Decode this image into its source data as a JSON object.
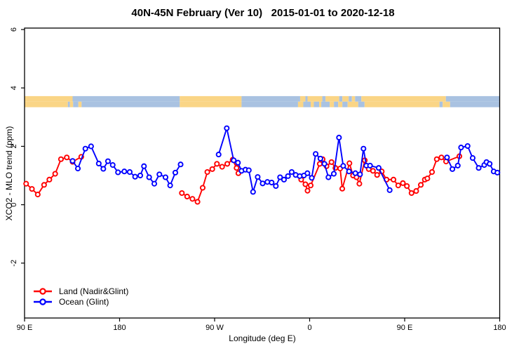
{
  "chart_data": {
    "type": "line",
    "title": "40N-45N February (Ver 10)   2015-01-01 to 2020-12-18",
    "xlabel": "Longitude (deg E)",
    "ylabel": "XCO2 - MLO trend (ppm)",
    "x_axis": {
      "min": 90,
      "max": 540,
      "ticks": [
        {
          "value": 90,
          "label": "90 E"
        },
        {
          "value": 180,
          "label": "180"
        },
        {
          "value": 270,
          "label": "90 W"
        },
        {
          "value": 360,
          "label": "0"
        },
        {
          "value": 450,
          "label": "90 E"
        },
        {
          "value": 540,
          "label": "180"
        }
      ]
    },
    "y_axis": {
      "min": -3.88,
      "max": 6.05,
      "ticks": [
        {
          "value": -2,
          "label": "-2"
        },
        {
          "value": 0,
          "label": "0"
        },
        {
          "value": 2,
          "label": "2"
        },
        {
          "value": 4,
          "label": "4"
        },
        {
          "value": 6,
          "label": "6"
        }
      ]
    },
    "map_strip": {
      "y_top": 3.72,
      "y_mid": 3.53,
      "y_bottom": 3.34,
      "land_color": "#FAD586",
      "ocean_color": "#A9C2E1",
      "top_row": [
        [
          90,
          135.5,
          "land"
        ],
        [
          135.5,
          237,
          "ocean"
        ],
        [
          237,
          295.5,
          "land"
        ],
        [
          295.5,
          351,
          "ocean"
        ],
        [
          351,
          356,
          "land"
        ],
        [
          356,
          358,
          "ocean"
        ],
        [
          358,
          372,
          "land"
        ],
        [
          372,
          375,
          "ocean"
        ],
        [
          375,
          388,
          "land"
        ],
        [
          388,
          391,
          "ocean"
        ],
        [
          391,
          397,
          "land"
        ],
        [
          397,
          400,
          "ocean"
        ],
        [
          400,
          403,
          "land"
        ],
        [
          403,
          409,
          "ocean"
        ],
        [
          409,
          489,
          "land"
        ],
        [
          489,
          540,
          "ocean"
        ]
      ],
      "bottom_row": [
        [
          90,
          131,
          "land"
        ],
        [
          131,
          133,
          "ocean"
        ],
        [
          133,
          136,
          "land"
        ],
        [
          136,
          141,
          "ocean"
        ],
        [
          141,
          144,
          "land"
        ],
        [
          144,
          237,
          "ocean"
        ],
        [
          237,
          295.5,
          "land"
        ],
        [
          295.5,
          349,
          "ocean"
        ],
        [
          349,
          354,
          "land"
        ],
        [
          354,
          361,
          "ocean"
        ],
        [
          361,
          364,
          "land"
        ],
        [
          364,
          369,
          "ocean"
        ],
        [
          369,
          371,
          "land"
        ],
        [
          371,
          379,
          "ocean"
        ],
        [
          379,
          383,
          "land"
        ],
        [
          383,
          387,
          "ocean"
        ],
        [
          387,
          391,
          "land"
        ],
        [
          391,
          396,
          "ocean"
        ],
        [
          396,
          406,
          "land"
        ],
        [
          406,
          412,
          "ocean"
        ],
        [
          412,
          483,
          "land"
        ],
        [
          483,
          486,
          "ocean"
        ],
        [
          486,
          493,
          "land"
        ],
        [
          493,
          540,
          "ocean"
        ]
      ]
    },
    "series": [
      {
        "name": "Land (Nadir&Glint)",
        "color": "#ff0000",
        "segments": [
          [
            [
              91.5,
              0.72
            ],
            [
              97,
              0.54
            ],
            [
              102.5,
              0.35
            ],
            [
              108.5,
              0.68
            ],
            [
              113.5,
              0.86
            ],
            [
              119,
              1.06
            ],
            [
              124.5,
              1.56
            ],
            [
              130,
              1.62
            ],
            [
              135.5,
              1.47
            ],
            [
              143.7,
              1.64
            ]
          ],
          [
            [
              239,
              0.4
            ],
            [
              244,
              0.28
            ],
            [
              249,
              0.2
            ],
            [
              253.8,
              0.1
            ],
            [
              258.7,
              0.58
            ],
            [
              263.1,
              1.12
            ],
            [
              267.8,
              1.22
            ],
            [
              272.2,
              1.4
            ],
            [
              277.1,
              1.3
            ],
            [
              282,
              1.4
            ],
            [
              287.1,
              1.54
            ],
            [
              290.8,
              1.26
            ],
            [
              292.5,
              1.08
            ]
          ],
          [
            [
              352,
              0.86
            ],
            [
              356,
              0.7
            ],
            [
              358,
              0.48
            ],
            [
              361,
              0.66
            ],
            [
              369.6,
              1.4
            ],
            [
              372.3,
              1.56
            ],
            [
              376,
              1.32
            ],
            [
              380.7,
              1.46
            ],
            [
              384.4,
              1.26
            ],
            [
              388.9,
              1.24
            ],
            [
              390.9,
              0.55
            ],
            [
              397.7,
              1.42
            ],
            [
              401.1,
              1.0
            ],
            [
              404.4,
              0.94
            ],
            [
              407.1,
              0.72
            ],
            [
              412.2,
              1.52
            ],
            [
              416,
              1.22
            ],
            [
              420,
              1.16
            ],
            [
              423.9,
              1.02
            ],
            [
              428.3,
              1.14
            ],
            [
              432.8,
              0.86
            ],
            [
              439.4,
              0.86
            ],
            [
              443.9,
              0.66
            ],
            [
              448.3,
              0.74
            ],
            [
              452.1,
              0.64
            ],
            [
              456.5,
              0.4
            ],
            [
              460.9,
              0.47
            ],
            [
              465.3,
              0.68
            ],
            [
              469.1,
              0.86
            ],
            [
              471.5,
              0.9
            ],
            [
              475.9,
              1.12
            ],
            [
              480.4,
              1.56
            ],
            [
              484.8,
              1.62
            ],
            [
              489.2,
              1.48
            ],
            [
              501.8,
              1.66
            ]
          ]
        ]
      },
      {
        "name": "Ocean (Glint)",
        "color": "#0000ff",
        "segments": [
          [
            [
              135.5,
              1.5
            ],
            [
              140.5,
              1.24
            ],
            [
              147.6,
              1.92
            ],
            [
              153,
              2.0
            ],
            [
              160.3,
              1.41
            ],
            [
              164.6,
              1.23
            ],
            [
              169,
              1.49
            ],
            [
              173.5,
              1.36
            ],
            [
              178.5,
              1.11
            ],
            [
              184.5,
              1.14
            ],
            [
              189.6,
              1.12
            ],
            [
              194.7,
              0.96
            ],
            [
              199.6,
              1.0
            ],
            [
              203.1,
              1.32
            ],
            [
              208,
              0.94
            ],
            [
              212.9,
              0.72
            ],
            [
              217.7,
              1.04
            ],
            [
              223.5,
              0.94
            ],
            [
              227.9,
              0.66
            ],
            [
              232.8,
              1.1
            ],
            [
              237.8,
              1.38
            ]
          ],
          [
            [
              273.8,
              1.72
            ],
            [
              281.5,
              2.62
            ],
            [
              288.1,
              1.52
            ],
            [
              292.1,
              1.44
            ],
            [
              295.5,
              1.16
            ],
            [
              299.2,
              1.2
            ],
            [
              302.4,
              1.18
            ],
            [
              306.4,
              0.44
            ],
            [
              310.8,
              0.95
            ],
            [
              315.5,
              0.73
            ],
            [
              320,
              0.78
            ],
            [
              324,
              0.76
            ],
            [
              328,
              0.64
            ],
            [
              332,
              0.94
            ],
            [
              335.7,
              0.86
            ],
            [
              339.5,
              0.98
            ],
            [
              343,
              1.12
            ],
            [
              346.8,
              1.02
            ],
            [
              350.6,
              0.98
            ],
            [
              354.6,
              1.0
            ],
            [
              357.9,
              1.08
            ],
            [
              362,
              0.92
            ],
            [
              365.7,
              1.74
            ],
            [
              370.2,
              1.58
            ],
            [
              374,
              1.4
            ],
            [
              377.8,
              0.94
            ],
            [
              382.9,
              1.06
            ],
            [
              387.8,
              2.3
            ],
            [
              391.8,
              1.33
            ],
            [
              397.3,
              1.14
            ],
            [
              403.3,
              1.08
            ],
            [
              407.7,
              1.04
            ],
            [
              411,
              1.92
            ],
            [
              413.7,
              1.34
            ],
            [
              417.2,
              1.34
            ],
            [
              425.4,
              1.26
            ],
            [
              435.8,
              0.5
            ]
          ],
          [
            [
              490.1,
              1.62
            ],
            [
              495.2,
              1.22
            ],
            [
              500.3,
              1.34
            ],
            [
              503.4,
              1.96
            ],
            [
              509.6,
              2.01
            ],
            [
              514.4,
              1.6
            ],
            [
              520.1,
              1.26
            ],
            [
              525.4,
              1.36
            ],
            [
              527.5,
              1.46
            ],
            [
              530.5,
              1.4
            ],
            [
              534.3,
              1.14
            ],
            [
              537.8,
              1.1
            ]
          ]
        ]
      }
    ],
    "legend_position": "bottom-left"
  }
}
